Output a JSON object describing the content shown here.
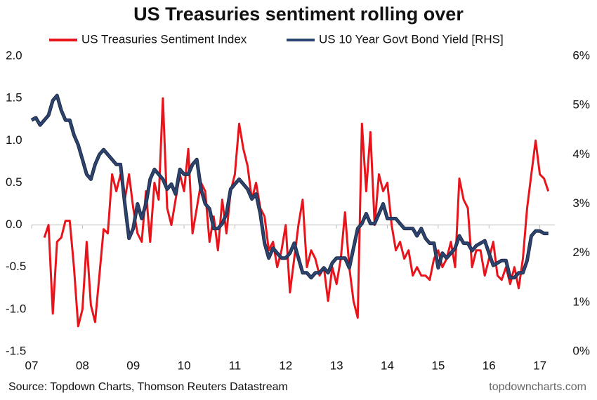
{
  "chart_data": {
    "type": "line",
    "title": "US Treasuries sentiment rolling over",
    "source": "Source: Topdown Charts, Thomson Reuters Datastream",
    "watermark": "topdowncharts.com",
    "legend": "top",
    "categories": [
      "07",
      null,
      null,
      null,
      null,
      null,
      null,
      null,
      null,
      null,
      null,
      null,
      "08",
      null,
      null,
      null,
      null,
      null,
      null,
      null,
      null,
      null,
      null,
      null,
      "09",
      null,
      null,
      null,
      null,
      null,
      null,
      null,
      null,
      null,
      null,
      null,
      "10",
      null,
      null,
      null,
      null,
      null,
      null,
      null,
      null,
      null,
      null,
      null,
      "11",
      null,
      null,
      null,
      null,
      null,
      null,
      null,
      null,
      null,
      null,
      null,
      "12",
      null,
      null,
      null,
      null,
      null,
      null,
      null,
      null,
      null,
      null,
      null,
      "13",
      null,
      null,
      null,
      null,
      null,
      null,
      null,
      null,
      null,
      null,
      null,
      "14",
      null,
      null,
      null,
      null,
      null,
      null,
      null,
      null,
      null,
      null,
      null,
      "15",
      null,
      null,
      null,
      null,
      null,
      null,
      null,
      null,
      null,
      null,
      null,
      "16",
      null,
      null,
      null,
      null,
      null,
      null,
      null,
      null,
      null,
      null,
      null,
      "17",
      null,
      null
    ],
    "series": [
      {
        "name": "US Treasuries Sentiment Index",
        "color": "#e8141b",
        "axis": "y",
        "values": [
          null,
          null,
          null,
          -0.15,
          0.0,
          -1.05,
          -0.2,
          -0.15,
          0.05,
          0.05,
          -0.5,
          -1.2,
          -1.0,
          -0.2,
          -0.95,
          -1.15,
          -0.6,
          -0.05,
          -0.1,
          0.6,
          0.4,
          0.6,
          0.3,
          0.6,
          0.2,
          -0.1,
          -0.2,
          0.4,
          -0.2,
          0.5,
          0.3,
          1.5,
          0.2,
          0.0,
          0.3,
          0.6,
          0.4,
          0.9,
          -0.1,
          0.2,
          0.5,
          0.4,
          -0.2,
          0.1,
          -0.3,
          0.3,
          -0.1,
          0.4,
          0.6,
          1.2,
          0.9,
          0.7,
          0.3,
          0.5,
          0.2,
          0.1,
          -0.3,
          -0.2,
          -0.5,
          -0.3,
          0.0,
          -0.8,
          -0.4,
          0.0,
          0.3,
          -0.5,
          -0.3,
          -0.4,
          -0.6,
          -0.5,
          -0.9,
          -0.5,
          -0.7,
          -0.4,
          0.15,
          -0.5,
          -0.9,
          -1.1,
          1.2,
          0.4,
          1.1,
          0.0,
          0.6,
          0.4,
          0.5,
          0.0,
          -0.3,
          -0.2,
          -0.4,
          -0.3,
          -0.6,
          -0.5,
          -0.6,
          -0.6,
          -0.65,
          -0.4,
          -0.3,
          -0.5,
          -0.4,
          -0.2,
          -0.5,
          0.55,
          0.3,
          0.2,
          -0.5,
          -0.3,
          -0.3,
          -0.6,
          -0.4,
          -0.2,
          -0.6,
          -0.65,
          -0.5,
          -0.7,
          -0.5,
          -0.75,
          -0.4,
          0.2,
          0.6,
          1.0,
          0.6,
          0.55,
          0.4
        ]
      },
      {
        "name": "US 10 Year Govt Bond Yield [RHS]",
        "color": "#2e4470",
        "axis": "y2",
        "values": [
          4.7,
          4.75,
          4.6,
          4.7,
          4.8,
          5.1,
          5.2,
          4.9,
          4.7,
          4.7,
          4.4,
          4.2,
          3.9,
          3.6,
          3.5,
          3.8,
          4.0,
          4.1,
          4.0,
          3.9,
          3.8,
          3.8,
          3.0,
          2.3,
          2.5,
          3.0,
          2.7,
          3.0,
          3.5,
          3.7,
          3.6,
          3.5,
          3.3,
          3.4,
          3.2,
          3.7,
          3.6,
          3.6,
          3.8,
          3.9,
          3.3,
          3.0,
          2.9,
          2.5,
          2.5,
          2.6,
          2.8,
          3.3,
          3.4,
          3.5,
          3.4,
          3.3,
          3.1,
          3.2,
          2.8,
          2.2,
          1.9,
          2.1,
          2.0,
          1.9,
          1.9,
          2.0,
          2.2,
          1.9,
          1.6,
          1.6,
          1.5,
          1.6,
          1.6,
          1.7,
          1.6,
          1.8,
          1.9,
          1.9,
          1.9,
          1.7,
          2.1,
          2.5,
          2.6,
          2.8,
          2.6,
          2.6,
          2.8,
          3.0,
          2.7,
          2.7,
          2.7,
          2.6,
          2.5,
          2.5,
          2.5,
          2.35,
          2.5,
          2.3,
          2.2,
          2.2,
          1.7,
          2.0,
          1.9,
          2.0,
          2.1,
          2.35,
          2.2,
          2.2,
          2.05,
          2.15,
          2.2,
          2.25,
          2.0,
          1.75,
          1.8,
          1.85,
          1.85,
          1.5,
          1.5,
          1.6,
          1.6,
          1.85,
          2.35,
          2.45,
          2.45,
          2.4,
          2.4
        ]
      }
    ],
    "ylim": [
      -1.5,
      2.0
    ],
    "yticks": [
      {
        "value": -1.5,
        "label": "-1.5"
      },
      {
        "value": -1.0,
        "label": "-1.0"
      },
      -0.5,
      {
        "value": 0,
        "label": "0.0"
      },
      0.5,
      {
        "value": 1,
        "label": "1.0"
      },
      1.5,
      {
        "value": 2,
        "label": "2.0"
      }
    ],
    "y2lim": [
      0,
      6
    ],
    "y2ticks": [
      {
        "value": 0,
        "label": "0%"
      },
      {
        "value": 1,
        "label": "1%"
      },
      {
        "value": 2,
        "label": "2%"
      },
      {
        "value": 3,
        "label": "3%"
      },
      {
        "value": 4,
        "label": "4%"
      },
      {
        "value": 5,
        "label": "5%"
      },
      {
        "value": 6,
        "label": "6%"
      }
    ]
  }
}
